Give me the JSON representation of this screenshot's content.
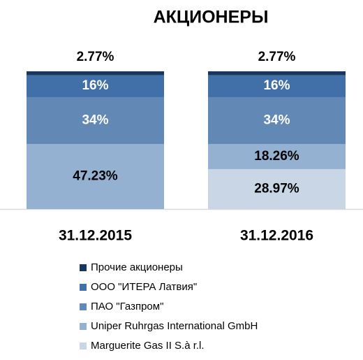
{
  "chart_data": {
    "type": "stacked_bar",
    "title": "АКЦИОНЕРЫ",
    "categories": [
      "31.12.2015",
      "31.12.2016"
    ],
    "ylim": [
      0,
      100
    ],
    "series": [
      {
        "name": "Marguerite Gas II S.à r.l.",
        "color": "#c9d6e6",
        "values": [
          null,
          28.97
        ],
        "value_labels": [
          null,
          "28.97%"
        ]
      },
      {
        "name": "Uniper Ruhrgas International GmbH",
        "color": "#94b1d2",
        "values": [
          47.23,
          18.26
        ],
        "value_labels": [
          "47.23%",
          "18.26%"
        ]
      },
      {
        "name": "ПАО \"Газпром\"",
        "color": "#6288b5",
        "values": [
          34,
          34
        ],
        "value_labels": [
          "34%",
          "34%"
        ]
      },
      {
        "name": "ООО \"ИТЕРА Латвия\"",
        "color": "#4170a8",
        "values": [
          16,
          16
        ],
        "value_labels": [
          "16%",
          "16%"
        ]
      },
      {
        "name": "Прочие акционеры",
        "color": "#17375e",
        "values": [
          2.77,
          2.77
        ],
        "value_labels": [
          "2.77%",
          "2.77%"
        ]
      }
    ]
  }
}
